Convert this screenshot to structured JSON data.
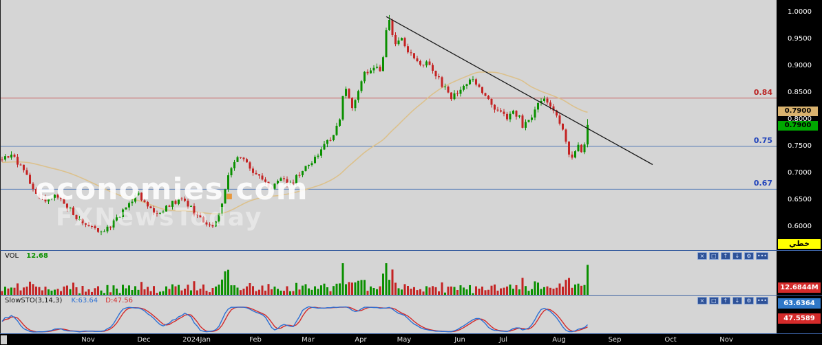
{
  "panels": {
    "price": {
      "watermark": {
        "part1": "economies",
        "dot": ".",
        "part2": "com",
        "line2": "FXNewsToday"
      },
      "price_boxes": [
        {
          "value": "0.7900",
          "style": "tan",
          "bg": "#d9b26e"
        },
        {
          "value": "0.7900",
          "style": "green",
          "bg": "#00a800"
        }
      ],
      "chart_type_button": "خطي"
    },
    "volume": {
      "label": "VOL",
      "value": "12.68",
      "axis_value": "12.6844M"
    },
    "stochastic": {
      "label": "SlowSTO(3,14,3)",
      "k_label": "K:63.64",
      "d_label": "D:47.56",
      "k_value": "63.6364",
      "d_value": "47.5589"
    },
    "toolbar_icons": [
      {
        "name": "close",
        "glyph": "×"
      },
      {
        "name": "maximize",
        "glyph": "□"
      },
      {
        "name": "arrow-up",
        "glyph": "↑"
      },
      {
        "name": "arrow-down",
        "glyph": "↓"
      },
      {
        "name": "settings",
        "glyph": "⚙"
      },
      {
        "name": "more",
        "glyph": "•••"
      }
    ]
  },
  "chart_data": {
    "type": "candlestick",
    "title": "",
    "ylim": [
      0.575,
      1.005
    ],
    "y_ticks": [
      1.0,
      0.95,
      0.9,
      0.85,
      0.8,
      0.75,
      0.7,
      0.65,
      0.6
    ],
    "grid": false,
    "price": {
      "bar_count": 190,
      "last_close": 0.79,
      "peak": {
        "bar": 125,
        "high": 0.995
      },
      "up_color": "#0a9000",
      "down_color": "#c42323",
      "close_anchors": [
        [
          0,
          0.725
        ],
        [
          3,
          0.737
        ],
        [
          6,
          0.712
        ],
        [
          9,
          0.682
        ],
        [
          12,
          0.655
        ],
        [
          15,
          0.648
        ],
        [
          17,
          0.665
        ],
        [
          20,
          0.642
        ],
        [
          23,
          0.625
        ],
        [
          26,
          0.608
        ],
        [
          30,
          0.596
        ],
        [
          33,
          0.588
        ],
        [
          36,
          0.61
        ],
        [
          39,
          0.628
        ],
        [
          42,
          0.652
        ],
        [
          44,
          0.664
        ],
        [
          46,
          0.641
        ],
        [
          49,
          0.625
        ],
        [
          52,
          0.632
        ],
        [
          55,
          0.645
        ],
        [
          58,
          0.652
        ],
        [
          61,
          0.634
        ],
        [
          64,
          0.614
        ],
        [
          67,
          0.6
        ],
        [
          69,
          0.612
        ],
        [
          71,
          0.648
        ],
        [
          73,
          0.7
        ],
        [
          75,
          0.722
        ],
        [
          77,
          0.734
        ],
        [
          79,
          0.718
        ],
        [
          81,
          0.704
        ],
        [
          84,
          0.688
        ],
        [
          87,
          0.673
        ],
        [
          90,
          0.691
        ],
        [
          93,
          0.68
        ],
        [
          96,
          0.697
        ],
        [
          99,
          0.714
        ],
        [
          102,
          0.736
        ],
        [
          105,
          0.757
        ],
        [
          107,
          0.774
        ],
        [
          109,
          0.802
        ],
        [
          110,
          0.846
        ],
        [
          111,
          0.86
        ],
        [
          112,
          0.836
        ],
        [
          113,
          0.824
        ],
        [
          115,
          0.856
        ],
        [
          117,
          0.884
        ],
        [
          119,
          0.897
        ],
        [
          121,
          0.903
        ],
        [
          122,
          0.889
        ],
        [
          123,
          0.918
        ],
        [
          124,
          0.962
        ],
        [
          125,
          0.985
        ],
        [
          126,
          0.955
        ],
        [
          127,
          0.938
        ],
        [
          129,
          0.948
        ],
        [
          131,
          0.93
        ],
        [
          133,
          0.91
        ],
        [
          135,
          0.898
        ],
        [
          137,
          0.906
        ],
        [
          139,
          0.892
        ],
        [
          141,
          0.874
        ],
        [
          143,
          0.857
        ],
        [
          145,
          0.84
        ],
        [
          147,
          0.853
        ],
        [
          149,
          0.862
        ],
        [
          151,
          0.877
        ],
        [
          153,
          0.864
        ],
        [
          155,
          0.85
        ],
        [
          157,
          0.84
        ],
        [
          159,
          0.824
        ],
        [
          161,
          0.812
        ],
        [
          163,
          0.8
        ],
        [
          165,
          0.813
        ],
        [
          167,
          0.803
        ],
        [
          168,
          0.79
        ],
        [
          170,
          0.797
        ],
        [
          172,
          0.82
        ],
        [
          174,
          0.84
        ],
        [
          176,
          0.832
        ],
        [
          178,
          0.814
        ],
        [
          180,
          0.794
        ],
        [
          181,
          0.776
        ],
        [
          182,
          0.754
        ],
        [
          183,
          0.74
        ],
        [
          184,
          0.73
        ],
        [
          185,
          0.744
        ],
        [
          186,
          0.753
        ],
        [
          187,
          0.74
        ],
        [
          188,
          0.75
        ],
        [
          189,
          0.79
        ]
      ],
      "ma": {
        "period": 45,
        "color": "#dcc18c",
        "pad_value": 0.72
      },
      "levels": [
        {
          "label": "0.84",
          "price": 0.84,
          "line_color": "#cc6666",
          "text_color": "#bb2222"
        },
        {
          "label": "0.75",
          "price": 0.75,
          "line_color": "#5b7fb8",
          "text_color": "#2244bb"
        },
        {
          "label": "0.67",
          "price": 0.67,
          "line_color": "#5b7fb8",
          "text_color": "#2244bb"
        }
      ],
      "trendline": {
        "from_bar": 124,
        "from_price": 0.992,
        "to_bar": 210,
        "to_price": 0.716,
        "color": "#1a1a1a"
      }
    },
    "volume": {
      "display_value": 12.68,
      "latest_total": "12.6844M"
    },
    "stochastic": {
      "k_period": 14,
      "slowing": 3,
      "d_period": 3,
      "k": 63.6364,
      "d": 47.5589,
      "k_color": "#2b6fd4",
      "d_color": "#d42a2a"
    },
    "x_axis_months": [
      {
        "label": "Nov",
        "bar": 28
      },
      {
        "label": "Dec",
        "bar": 46
      },
      {
        "label": "2024Jan",
        "bar": 63
      },
      {
        "label": "Feb",
        "bar": 82
      },
      {
        "label": "Mar",
        "bar": 99
      },
      {
        "label": "Apr",
        "bar": 116
      },
      {
        "label": "May",
        "bar": 130
      },
      {
        "label": "Jun",
        "bar": 148
      },
      {
        "label": "Jul",
        "bar": 162
      },
      {
        "label": "Aug",
        "bar": 180
      },
      {
        "label": "Sep",
        "bar": 198
      },
      {
        "label": "Oct",
        "bar": 216
      },
      {
        "label": "Nov",
        "bar": 234
      }
    ]
  }
}
